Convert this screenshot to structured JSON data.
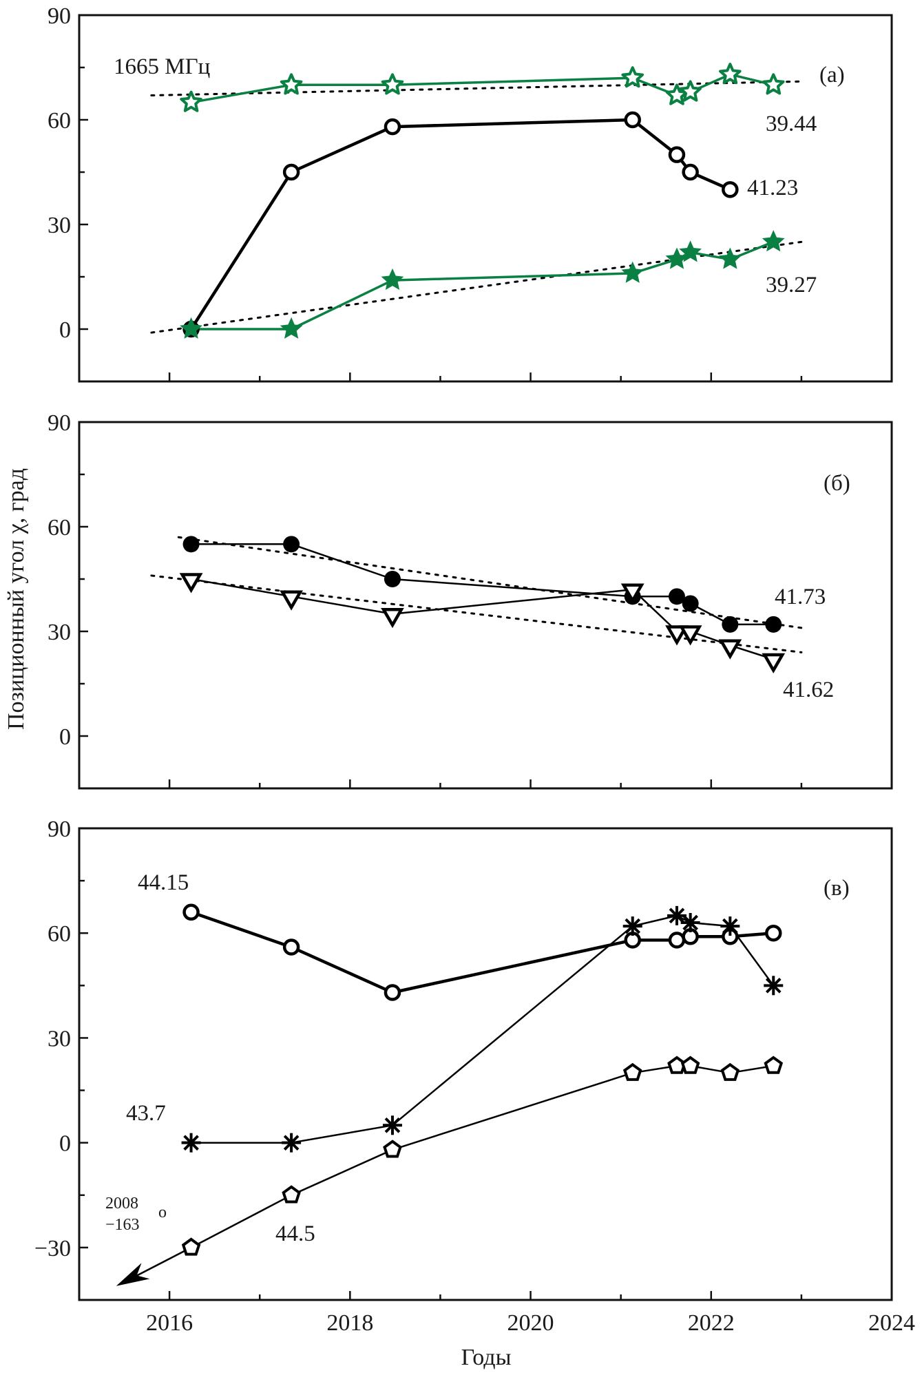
{
  "chart_data": {
    "type": "line",
    "xlabel": "Годы",
    "ylabel": "Позиционный угол χ, град",
    "xlim": [
      2015,
      2024
    ],
    "x_ticks": [
      2016,
      2018,
      2020,
      2022,
      2024
    ],
    "x_tick_labels": [
      "2016",
      "2018",
      "2020",
      "2022",
      "2024"
    ],
    "x_minor_ticks": [
      2017,
      2019,
      2021,
      2023
    ],
    "colors": {
      "green": "#0b8043",
      "black": "#000000"
    },
    "panels": [
      {
        "id": "a",
        "label": "(a)",
        "ylim": [
          -15,
          90
        ],
        "y_ticks": [
          0,
          30,
          60,
          90
        ],
        "y_tick_labels": [
          "0",
          "30",
          "60",
          "90"
        ],
        "y_minor_ticks": [
          15,
          45,
          75
        ],
        "annotations": [
          {
            "text": "1665 МГц"
          },
          {
            "text": "39.44"
          },
          {
            "text": "41.23"
          },
          {
            "text": "39.27"
          }
        ],
        "series": [
          {
            "name": "39.44",
            "marker": "open-star",
            "color": "green",
            "line": "solid",
            "x": [
              2016.24,
              2017.35,
              2018.47,
              2021.13,
              2021.62,
              2021.77,
              2022.21,
              2022.69
            ],
            "y": [
              65,
              70,
              70,
              72,
              67,
              68,
              73,
              70
            ]
          },
          {
            "name": "41.23",
            "marker": "open-circle",
            "color": "black",
            "line": "solid-thick",
            "x": [
              2016.24,
              2017.35,
              2018.47,
              2021.13,
              2021.62,
              2021.77,
              2022.21
            ],
            "y": [
              0,
              45,
              58,
              60,
              50,
              45,
              40
            ]
          },
          {
            "name": "39.27",
            "marker": "filled-star",
            "color": "green",
            "line": "solid",
            "x": [
              2016.24,
              2017.35,
              2018.47,
              2021.13,
              2021.62,
              2021.77,
              2022.21,
              2022.69
            ],
            "y": [
              0,
              0,
              14,
              16,
              20,
              22,
              20,
              25
            ]
          }
        ],
        "trend_lines": [
          {
            "name": "39.44 trend",
            "x": [
              2015.8,
              2023.0
            ],
            "y": [
              67,
              71
            ]
          },
          {
            "name": "39.27 trend",
            "x": [
              2015.8,
              2023.0
            ],
            "y": [
              -1,
              25
            ]
          }
        ]
      },
      {
        "id": "b",
        "label": "(б)",
        "ylim": [
          -15,
          90
        ],
        "y_ticks": [
          0,
          30,
          60,
          90
        ],
        "y_tick_labels": [
          "0",
          "30",
          "60",
          "90"
        ],
        "y_minor_ticks": [
          15,
          45,
          75
        ],
        "annotations": [
          {
            "text": "41.73"
          },
          {
            "text": "41.62"
          }
        ],
        "series": [
          {
            "name": "41.73",
            "marker": "filled-circle",
            "color": "black",
            "line": "solid",
            "x": [
              2016.24,
              2017.35,
              2018.47,
              2021.13,
              2021.62,
              2021.77,
              2022.21,
              2022.69
            ],
            "y": [
              55,
              55,
              45,
              40,
              40,
              38,
              32,
              32
            ]
          },
          {
            "name": "41.62",
            "marker": "open-triangle-down",
            "color": "black",
            "line": "solid",
            "x": [
              2016.24,
              2017.35,
              2018.47,
              2021.13,
              2021.62,
              2021.77,
              2022.21,
              2022.69
            ],
            "y": [
              45,
              40,
              35,
              42,
              30,
              30,
              26,
              22
            ]
          }
        ],
        "trend_lines": [
          {
            "name": "41.73 trend",
            "x": [
              2016.1,
              2023.0
            ],
            "y": [
              57,
              31
            ]
          },
          {
            "name": "41.62 trend",
            "x": [
              2015.8,
              2023.0
            ],
            "y": [
              46,
              24
            ]
          }
        ]
      },
      {
        "id": "c",
        "label": "(в)",
        "ylim": [
          -45,
          90
        ],
        "y_ticks": [
          -30,
          0,
          30,
          60,
          90
        ],
        "y_tick_labels": [
          "−30",
          "0",
          "30",
          "60",
          "90"
        ],
        "y_minor_ticks": [
          -15,
          15,
          45,
          75
        ],
        "annotations": [
          {
            "text": "44.15"
          },
          {
            "text": "43.7"
          },
          {
            "text": "44.5"
          },
          {
            "text": "2008"
          },
          {
            "text": "−163"
          },
          {
            "text": "o"
          }
        ],
        "series": [
          {
            "name": "44.15",
            "marker": "open-circle",
            "color": "black",
            "line": "solid-thick",
            "x": [
              2016.24,
              2017.35,
              2018.47,
              2021.13,
              2021.62,
              2021.77,
              2022.21,
              2022.69
            ],
            "y": [
              66,
              56,
              43,
              58,
              58,
              59,
              59,
              60
            ]
          },
          {
            "name": "43.7",
            "marker": "asterisk",
            "color": "black",
            "line": "solid",
            "x": [
              2016.24,
              2017.35,
              2018.47,
              2021.13,
              2021.62,
              2021.77,
              2022.21,
              2022.69
            ],
            "y": [
              0,
              0,
              5,
              62,
              65,
              63,
              62,
              45
            ]
          },
          {
            "name": "44.5",
            "marker": "open-pentagon",
            "color": "black",
            "line": "solid",
            "x": [
              2016.24,
              2017.35,
              2018.47,
              2021.13,
              2021.62,
              2021.77,
              2022.21,
              2022.69
            ],
            "y": [
              -30,
              -15,
              -2,
              20,
              22,
              22,
              20,
              22
            ]
          }
        ],
        "arrow": {
          "from": [
            2016.24,
            -30
          ],
          "to": [
            2015.41,
            -41
          ],
          "note": "2008: −163°"
        }
      }
    ]
  }
}
